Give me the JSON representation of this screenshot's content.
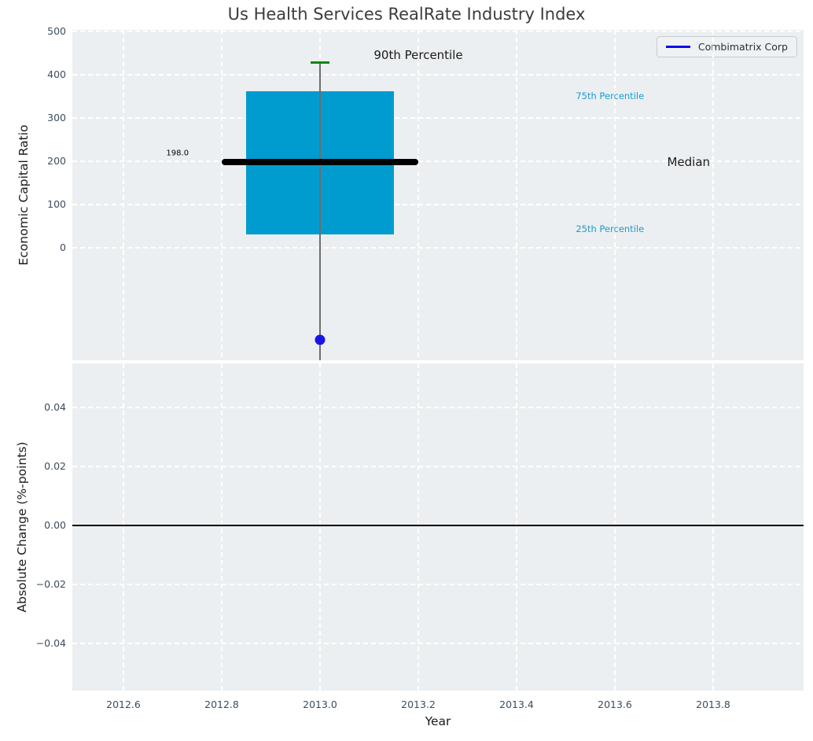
{
  "chart_data": [
    {
      "type": "boxplot",
      "title": "Us Health Services RealRate Industry Index",
      "ylabel": "Economic Capital Ratio",
      "xlabel": "",
      "grid": true,
      "background": "#eceff1",
      "xlim": [
        2012.5,
        2013.99
      ],
      "ylim": [
        -260,
        503
      ],
      "xticks": [
        2012.6,
        2012.8,
        2013.0,
        2013.2,
        2013.4,
        2013.6,
        2013.8
      ],
      "xtick_labels": [
        "2012.6",
        "2012.8",
        "2013.0",
        "2013.2",
        "2013.4",
        "2013.6",
        "2013.8"
      ],
      "yticks": [
        0,
        100,
        200,
        300,
        400,
        500
      ],
      "ytick_labels": [
        "0",
        "100",
        "200",
        "300",
        "400",
        "500"
      ],
      "legend": {
        "position": "upper right",
        "entries": [
          {
            "label": "Combimatrix Corp",
            "color": "#0b0bee"
          }
        ]
      },
      "box": {
        "year": 2013,
        "q1": 31,
        "median": 198.0,
        "q3": 361,
        "p90": 428,
        "whisker_low_offscale": true,
        "box_half_width_years": 0.15,
        "median_half_width_years": 0.2,
        "box_color": "#009ccf",
        "median_color": "#000000",
        "cap_color": "#0f870f",
        "whisker_color": "#6e6e6e"
      },
      "series": [
        {
          "name": "Combimatrix Corp",
          "points": [
            {
              "x": 2013.0,
              "y": -212
            }
          ],
          "color": "#1a14e8"
        }
      ],
      "annotations": [
        {
          "text": "90th Percentile",
          "x": 2013.2,
          "y": 445,
          "color": "#1a1a1a",
          "size": 15
        },
        {
          "text": "75th Percentile",
          "x": 2013.59,
          "y": 351,
          "color": "#1a9cd3",
          "size": 11.5
        },
        {
          "text": "Median",
          "x": 2013.75,
          "y": 198,
          "color": "#1a1a1a",
          "size": 15
        },
        {
          "text": "25th Percentile",
          "x": 2013.59,
          "y": 44,
          "color": "#1a9cd3",
          "size": 11.5
        },
        {
          "text": "198.0",
          "x": 2012.71,
          "y": 218,
          "color": "#000000",
          "size": 10
        }
      ]
    },
    {
      "type": "line",
      "ylabel": "Absolute Change (%-points)",
      "xlabel": "Year",
      "grid": true,
      "background": "#eceff1",
      "xlim": [
        2012.5,
        2013.99
      ],
      "ylim": [
        -0.055,
        0.055
      ],
      "xticks": [
        2012.6,
        2012.8,
        2013.0,
        2013.2,
        2013.4,
        2013.6,
        2013.8
      ],
      "yticks": [
        0.04,
        0.02,
        0.0,
        -0.02,
        -0.04
      ],
      "ytick_labels": [
        "0.04",
        "0.02",
        "0.00",
        "−0.02",
        "−0.04"
      ],
      "zero_line": 0.0,
      "series": []
    }
  ]
}
